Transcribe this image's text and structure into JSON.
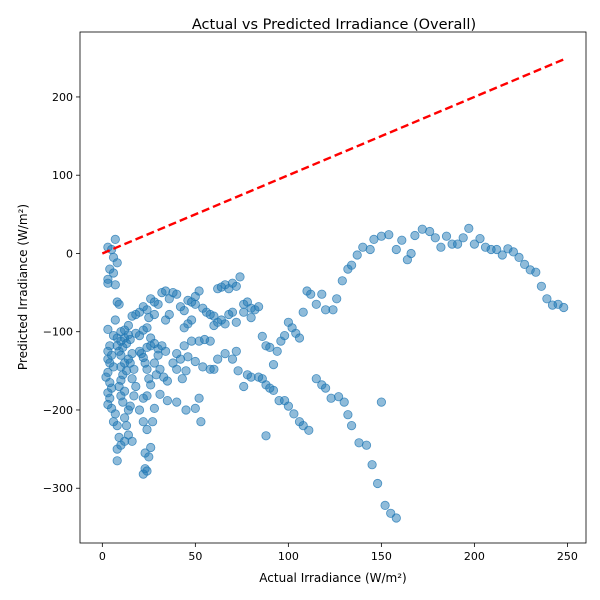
{
  "chart_data": {
    "type": "scatter",
    "title": "Actual vs Predicted Irradiance (Overall)",
    "xlabel": "Actual Irradiance (W/m²)",
    "ylabel": "Predicted Irradiance (W/m²)",
    "xlim": [
      -12,
      260
    ],
    "ylim": [
      -370,
      283
    ],
    "xticks": [
      0,
      50,
      100,
      150,
      200,
      250
    ],
    "yticks": [
      -300,
      -200,
      -100,
      0,
      100,
      200
    ],
    "grid": false,
    "point_color": "#1f77b4",
    "reference_line": {
      "style": "dashed",
      "color": "#ff0000",
      "from": [
        0,
        0
      ],
      "to": [
        248,
        248
      ]
    },
    "points": [
      [
        3,
        8
      ],
      [
        5,
        5
      ],
      [
        7,
        18
      ],
      [
        6,
        -5
      ],
      [
        8,
        -12
      ],
      [
        4,
        -20
      ],
      [
        6,
        -25
      ],
      [
        3,
        -33
      ],
      [
        3,
        -38
      ],
      [
        7,
        -40
      ],
      [
        8,
        -62
      ],
      [
        9,
        -65
      ],
      [
        7,
        -85
      ],
      [
        3,
        -97
      ],
      [
        10,
        -100
      ],
      [
        4,
        -118
      ],
      [
        6,
        -105
      ],
      [
        8,
        -108
      ],
      [
        3,
        -125
      ],
      [
        5,
        -130
      ],
      [
        3,
        -135
      ],
      [
        4,
        -140
      ],
      [
        6,
        -145
      ],
      [
        3,
        -152
      ],
      [
        2,
        -158
      ],
      [
        4,
        -165
      ],
      [
        5,
        -172
      ],
      [
        3,
        -178
      ],
      [
        4,
        -185
      ],
      [
        3,
        -193
      ],
      [
        5,
        -198
      ],
      [
        7,
        -205
      ],
      [
        6,
        -215
      ],
      [
        8,
        -220
      ],
      [
        9,
        -235
      ],
      [
        8,
        -250
      ],
      [
        8,
        -265
      ],
      [
        10,
        -245
      ],
      [
        12,
        -240
      ],
      [
        14,
        -232
      ],
      [
        13,
        -220
      ],
      [
        12,
        -210
      ],
      [
        14,
        -200
      ],
      [
        11,
        -190
      ],
      [
        10,
        -182
      ],
      [
        12,
        -176
      ],
      [
        9,
        -170
      ],
      [
        10,
        -162
      ],
      [
        11,
        -155
      ],
      [
        13,
        -150
      ],
      [
        10,
        -145
      ],
      [
        12,
        -140
      ],
      [
        14,
        -135
      ],
      [
        10,
        -130
      ],
      [
        9,
        -125
      ],
      [
        11,
        -120
      ],
      [
        13,
        -115
      ],
      [
        15,
        -110
      ],
      [
        12,
        -108
      ],
      [
        14,
        -104
      ],
      [
        10,
        -112
      ],
      [
        8,
        -118
      ],
      [
        16,
        -128
      ],
      [
        15,
        -140
      ],
      [
        17,
        -148
      ],
      [
        16,
        -160
      ],
      [
        18,
        -170
      ],
      [
        17,
        -182
      ],
      [
        15,
        -195
      ],
      [
        16,
        -240
      ],
      [
        20,
        -200
      ],
      [
        22,
        -185
      ],
      [
        24,
        -182
      ],
      [
        22,
        -215
      ],
      [
        24,
        -225
      ],
      [
        23,
        -255
      ],
      [
        25,
        -260
      ],
      [
        23,
        -275
      ],
      [
        24,
        -278
      ],
      [
        22,
        -282
      ],
      [
        26,
        -248
      ],
      [
        27,
        -215
      ],
      [
        28,
        -198
      ],
      [
        26,
        -168
      ],
      [
        25,
        -160
      ],
      [
        24,
        -148
      ],
      [
        23,
        -140
      ],
      [
        22,
        -133
      ],
      [
        21,
        -128
      ],
      [
        20,
        -125
      ],
      [
        24,
        -120
      ],
      [
        26,
        -118
      ],
      [
        28,
        -115
      ],
      [
        30,
        -122
      ],
      [
        32,
        -118
      ],
      [
        34,
        -125
      ],
      [
        30,
        -130
      ],
      [
        28,
        -140
      ],
      [
        31,
        -148
      ],
      [
        29,
        -155
      ],
      [
        33,
        -158
      ],
      [
        35,
        -163
      ],
      [
        31,
        -180
      ],
      [
        35,
        -188
      ],
      [
        40,
        -190
      ],
      [
        45,
        -200
      ],
      [
        50,
        -198
      ],
      [
        52,
        -185
      ],
      [
        53,
        -215
      ],
      [
        43,
        -160
      ],
      [
        45,
        -150
      ],
      [
        40,
        -148
      ],
      [
        38,
        -140
      ],
      [
        42,
        -135
      ],
      [
        46,
        -132
      ],
      [
        40,
        -128
      ],
      [
        44,
        -118
      ],
      [
        48,
        -112
      ],
      [
        52,
        -112
      ],
      [
        55,
        -110
      ],
      [
        58,
        -112
      ],
      [
        50,
        -138
      ],
      [
        54,
        -145
      ],
      [
        58,
        -148
      ],
      [
        60,
        -148
      ],
      [
        62,
        -135
      ],
      [
        66,
        -128
      ],
      [
        70,
        -135
      ],
      [
        72,
        -125
      ],
      [
        73,
        -150
      ],
      [
        76,
        -170
      ],
      [
        78,
        -155
      ],
      [
        80,
        -158
      ],
      [
        84,
        -158
      ],
      [
        86,
        -160
      ],
      [
        88,
        -168
      ],
      [
        90,
        -172
      ],
      [
        92,
        -175
      ],
      [
        88,
        -233
      ],
      [
        95,
        -188
      ],
      [
        98,
        -188
      ],
      [
        100,
        -195
      ],
      [
        103,
        -205
      ],
      [
        106,
        -215
      ],
      [
        108,
        -220
      ],
      [
        111,
        -226
      ],
      [
        115,
        -160
      ],
      [
        118,
        -168
      ],
      [
        120,
        -172
      ],
      [
        123,
        -185
      ],
      [
        127,
        -183
      ],
      [
        130,
        -190
      ],
      [
        132,
        -206
      ],
      [
        134,
        -220
      ],
      [
        138,
        -242
      ],
      [
        142,
        -245
      ],
      [
        145,
        -270
      ],
      [
        148,
        -294
      ],
      [
        152,
        -322
      ],
      [
        155,
        -332
      ],
      [
        158,
        -338
      ],
      [
        150,
        -190
      ],
      [
        90,
        -120
      ],
      [
        92,
        -142
      ],
      [
        94,
        -125
      ],
      [
        96,
        -112
      ],
      [
        98,
        -105
      ],
      [
        100,
        -88
      ],
      [
        102,
        -95
      ],
      [
        104,
        -102
      ],
      [
        106,
        -108
      ],
      [
        108,
        -75
      ],
      [
        110,
        -48
      ],
      [
        112,
        -52
      ],
      [
        115,
        -65
      ],
      [
        118,
        -52
      ],
      [
        120,
        -72
      ],
      [
        124,
        -72
      ],
      [
        126,
        -58
      ],
      [
        129,
        -35
      ],
      [
        132,
        -20
      ],
      [
        134,
        -15
      ],
      [
        137,
        -2
      ],
      [
        140,
        8
      ],
      [
        144,
        5
      ],
      [
        146,
        18
      ],
      [
        150,
        22
      ],
      [
        154,
        24
      ],
      [
        158,
        5
      ],
      [
        161,
        17
      ],
      [
        164,
        -8
      ],
      [
        166,
        0
      ],
      [
        168,
        23
      ],
      [
        172,
        31
      ],
      [
        176,
        28
      ],
      [
        179,
        20
      ],
      [
        182,
        8
      ],
      [
        185,
        22
      ],
      [
        188,
        12
      ],
      [
        191,
        12
      ],
      [
        194,
        20
      ],
      [
        197,
        32
      ],
      [
        200,
        12
      ],
      [
        203,
        19
      ],
      [
        206,
        8
      ],
      [
        209,
        5
      ],
      [
        212,
        5
      ],
      [
        215,
        -2
      ],
      [
        218,
        6
      ],
      [
        221,
        2
      ],
      [
        224,
        -5
      ],
      [
        227,
        -14
      ],
      [
        230,
        -21
      ],
      [
        233,
        -24
      ],
      [
        236,
        -42
      ],
      [
        239,
        -58
      ],
      [
        242,
        -66
      ],
      [
        245,
        -65
      ],
      [
        248,
        -69
      ],
      [
        20,
        -75
      ],
      [
        22,
        -68
      ],
      [
        24,
        -72
      ],
      [
        25,
        -82
      ],
      [
        28,
        -78
      ],
      [
        30,
        -65
      ],
      [
        32,
        -50
      ],
      [
        34,
        -48
      ],
      [
        36,
        -58
      ],
      [
        38,
        -50
      ],
      [
        40,
        -52
      ],
      [
        42,
        -68
      ],
      [
        44,
        -73
      ],
      [
        46,
        -60
      ],
      [
        48,
        -62
      ],
      [
        50,
        -55
      ],
      [
        52,
        -48
      ],
      [
        54,
        -70
      ],
      [
        56,
        -75
      ],
      [
        58,
        -78
      ],
      [
        60,
        -80
      ],
      [
        62,
        -45
      ],
      [
        64,
        -43
      ],
      [
        66,
        -40
      ],
      [
        68,
        -45
      ],
      [
        70,
        -38
      ],
      [
        72,
        -42
      ],
      [
        74,
        -30
      ],
      [
        76,
        -65
      ],
      [
        78,
        -62
      ],
      [
        80,
        -70
      ],
      [
        82,
        -72
      ],
      [
        84,
        -68
      ],
      [
        86,
        -106
      ],
      [
        88,
        -118
      ],
      [
        76,
        -75
      ],
      [
        80,
        -82
      ],
      [
        60,
        -92
      ],
      [
        62,
        -88
      ],
      [
        64,
        -85
      ],
      [
        66,
        -90
      ],
      [
        68,
        -78
      ],
      [
        70,
        -75
      ],
      [
        72,
        -88
      ],
      [
        50,
        -65
      ],
      [
        48,
        -85
      ],
      [
        46,
        -90
      ],
      [
        44,
        -95
      ],
      [
        36,
        -78
      ],
      [
        34,
        -85
      ],
      [
        28,
        -62
      ],
      [
        26,
        -58
      ],
      [
        18,
        -78
      ],
      [
        16,
        -80
      ],
      [
        14,
        -92
      ],
      [
        12,
        -98
      ],
      [
        18,
        -102
      ],
      [
        20,
        -105
      ],
      [
        22,
        -98
      ],
      [
        24,
        -95
      ],
      [
        26,
        -108
      ]
    ]
  }
}
